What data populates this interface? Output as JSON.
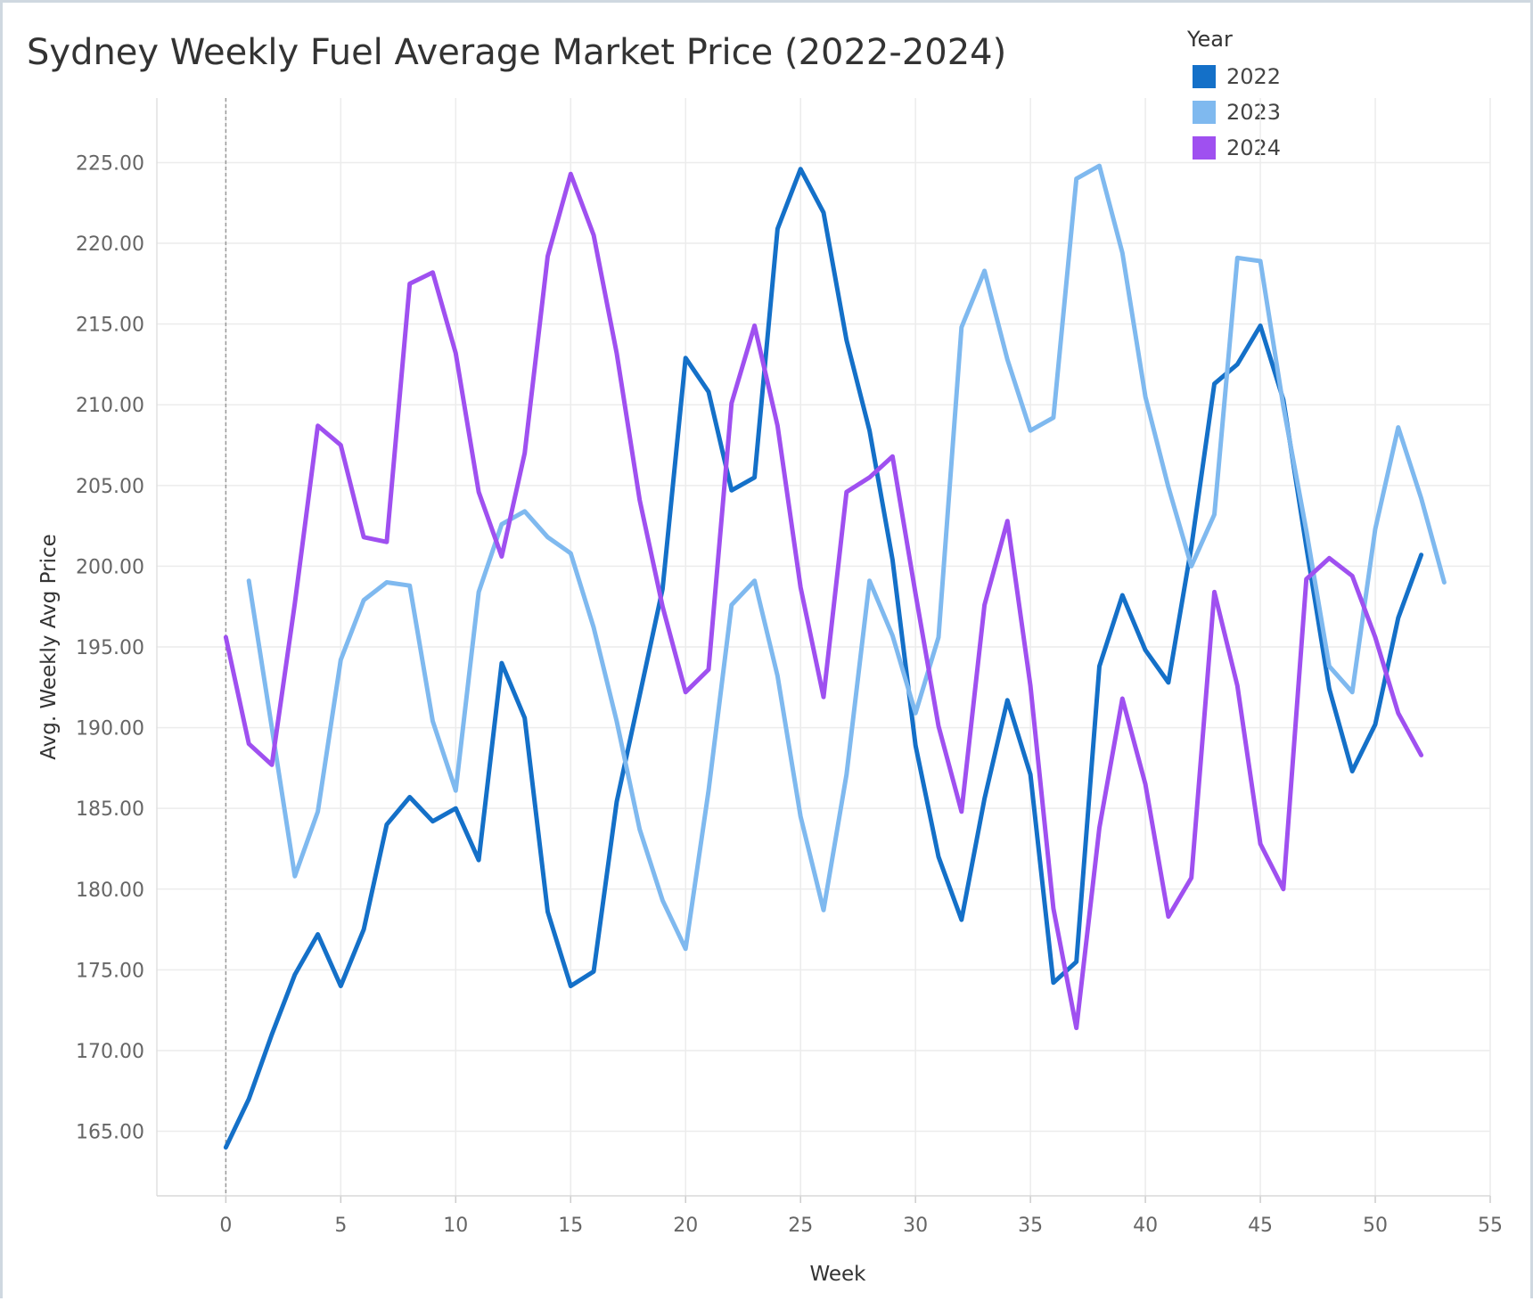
{
  "title": "Sydney Weekly Fuel Average Market Price (2022-2024)",
  "chart_data": {
    "type": "line",
    "title": "Sydney Weekly Fuel Average Market Price (2022-2024)",
    "xlabel": "Week",
    "ylabel": "Avg. Weekly Avg Price",
    "xlim": [
      -3,
      55
    ],
    "ylim": [
      161,
      229
    ],
    "x_ticks": [
      0,
      5,
      10,
      15,
      20,
      25,
      30,
      35,
      40,
      45,
      50,
      55
    ],
    "y_ticks": [
      165,
      170,
      175,
      180,
      185,
      190,
      195,
      200,
      205,
      210,
      215,
      220,
      225
    ],
    "y_tick_format": "2 decimals",
    "grid": true,
    "reference_line_x": 0,
    "legend": {
      "title": "Year",
      "position": "top-right"
    },
    "series": [
      {
        "name": "2022",
        "color": "#1470c8",
        "x": [
          0,
          1,
          2,
          3,
          4,
          5,
          6,
          7,
          8,
          9,
          10,
          11,
          12,
          13,
          14,
          15,
          16,
          17,
          18,
          19,
          20,
          21,
          22,
          23,
          24,
          25,
          26,
          27,
          28,
          29,
          30,
          31,
          32,
          33,
          34,
          35,
          36,
          37,
          38,
          39,
          40,
          41,
          42,
          43,
          44,
          45,
          46,
          47,
          48,
          49,
          50,
          51,
          52
        ],
        "values": [
          164.0,
          167.0,
          171.0,
          174.7,
          177.2,
          174.0,
          177.5,
          184.0,
          185.7,
          184.2,
          185.0,
          181.8,
          194.0,
          190.6,
          178.6,
          174.0,
          174.9,
          185.4,
          192.0,
          198.6,
          212.9,
          210.8,
          204.7,
          205.5,
          220.9,
          224.6,
          221.9,
          214.0,
          208.4,
          200.4,
          188.9,
          182.0,
          178.1,
          185.6,
          191.7,
          187.1,
          174.2,
          175.5,
          193.8,
          198.2,
          194.8,
          192.8,
          201.2,
          211.3,
          212.5,
          214.9,
          210.3,
          201.2,
          192.4,
          187.3,
          190.2,
          196.8,
          200.7
        ]
      },
      {
        "name": "2023",
        "color": "#7fb9ef",
        "x": [
          1,
          2,
          3,
          4,
          5,
          6,
          7,
          8,
          9,
          10,
          11,
          12,
          13,
          14,
          15,
          16,
          17,
          18,
          19,
          20,
          21,
          22,
          23,
          24,
          25,
          26,
          27,
          28,
          29,
          30,
          31,
          32,
          33,
          34,
          35,
          36,
          37,
          38,
          39,
          40,
          41,
          42,
          43,
          44,
          45,
          46,
          47,
          48,
          49,
          50,
          51,
          52,
          53
        ],
        "values": [
          199.1,
          190.0,
          180.8,
          184.8,
          194.2,
          197.9,
          199.0,
          198.8,
          190.4,
          186.1,
          198.4,
          202.6,
          203.4,
          201.8,
          200.8,
          196.2,
          190.4,
          183.7,
          179.3,
          176.3,
          186.1,
          197.6,
          199.1,
          193.2,
          184.5,
          178.7,
          187.1,
          199.1,
          195.7,
          190.9,
          195.6,
          214.8,
          218.3,
          212.8,
          208.4,
          209.2,
          224.0,
          224.8,
          219.4,
          210.5,
          204.9,
          200.0,
          203.2,
          219.1,
          218.9,
          209.9,
          202.2,
          193.8,
          192.2,
          202.3,
          208.6,
          204.2,
          199.0
        ]
      },
      {
        "name": "2024",
        "color": "#9f50f0",
        "x": [
          0,
          1,
          2,
          3,
          4,
          5,
          6,
          7,
          8,
          9,
          10,
          11,
          12,
          13,
          14,
          15,
          16,
          17,
          18,
          19,
          20,
          21,
          22,
          23,
          24,
          25,
          26,
          27,
          28,
          29,
          30,
          31,
          32,
          33,
          34,
          35,
          36,
          37,
          38,
          39,
          40,
          41,
          42,
          43,
          44,
          45,
          46,
          47,
          48,
          49,
          50,
          51,
          52
        ],
        "values": [
          195.6,
          189.0,
          187.7,
          197.7,
          208.7,
          207.5,
          201.8,
          201.5,
          217.5,
          218.2,
          213.2,
          204.6,
          200.6,
          207.0,
          219.2,
          224.3,
          220.5,
          213.2,
          204.1,
          197.5,
          192.2,
          193.6,
          210.1,
          214.9,
          208.7,
          198.7,
          191.9,
          204.6,
          205.5,
          206.8,
          198.3,
          190.1,
          184.8,
          197.6,
          202.8,
          192.6,
          178.8,
          171.4,
          183.8,
          191.8,
          186.5,
          178.3,
          180.7,
          198.4,
          192.6,
          182.8,
          180.0,
          199.2,
          200.5,
          199.4,
          195.6,
          190.9,
          188.3
        ]
      }
    ]
  }
}
